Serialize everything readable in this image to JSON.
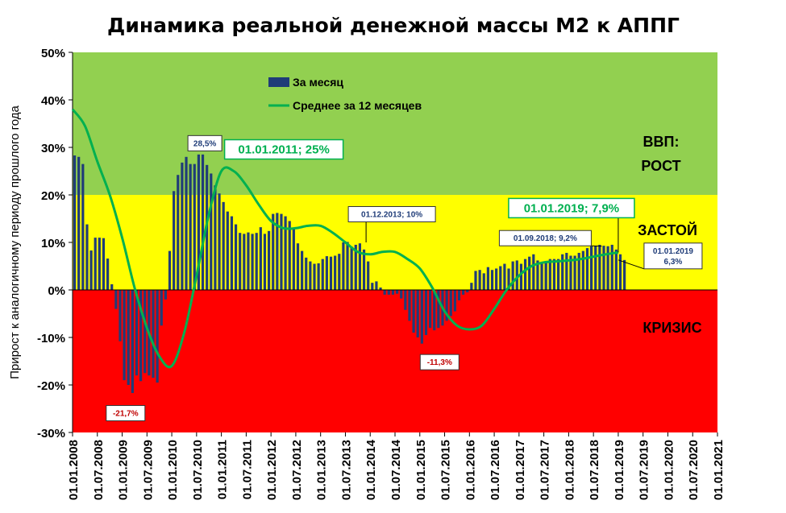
{
  "chart_data": {
    "type": "bar",
    "title": "Динамика реальной денежной массы М2 к АППГ",
    "ylabel": "Прирост к аналогичному периоду прошлого года",
    "ylim": [
      -30,
      50
    ],
    "yticks": [
      50,
      40,
      30,
      20,
      10,
      0,
      -10,
      -20,
      -30
    ],
    "ytick_labels": [
      "50%",
      "40%",
      "30%",
      "20%",
      "10%",
      "0%",
      "-10%",
      "-20%",
      "-30%"
    ],
    "x_start": "01.01.2008",
    "x_end": "01.01.2021",
    "xtick_labels": [
      "01.01.2008",
      "01.07.2008",
      "01.01.2009",
      "01.07.2009",
      "01.01.2010",
      "01.07.2010",
      "01.01.2011",
      "01.07.2011",
      "01.01.2012",
      "01.07.2012",
      "01.01.2013",
      "01.07.2013",
      "01.01.2014",
      "01.07.2014",
      "01.01.2015",
      "01.07.2015",
      "01.01.2016",
      "01.07.2016",
      "01.01.2017",
      "01.07.2017",
      "01.01.2018",
      "01.07.2018",
      "01.01.2019",
      "01.07.2019",
      "01.01.2020",
      "01.07.2020",
      "01.01.2021"
    ],
    "zones": [
      {
        "from": 20,
        "to": 50,
        "color": "#92d050",
        "label": [
          "ВВП:",
          "РОСТ"
        ]
      },
      {
        "from": 0,
        "to": 20,
        "color": "#ffff00",
        "label": [
          "ЗАСТОЙ"
        ]
      },
      {
        "from": -30,
        "to": 0,
        "color": "#ff0000",
        "label": [
          "КРИЗИС"
        ]
      }
    ],
    "legend": {
      "placement": "top-left",
      "entries": [
        "За месяц",
        "Среднее за 12 месяцев"
      ]
    },
    "series": [
      {
        "name": "За месяц",
        "kind": "bar",
        "color": "#1f3c78",
        "start": "01.01.2008",
        "values": [
          28.3,
          28,
          26.5,
          13.8,
          8.3,
          11,
          11,
          10.9,
          6.6,
          1.2,
          -4,
          -10.8,
          -19,
          -20,
          -21.7,
          -18,
          -19.2,
          -17.5,
          -18,
          -18.5,
          -19.5,
          -7.5,
          -2,
          8.2,
          20.8,
          24.2,
          26.8,
          28,
          26.5,
          26.5,
          28.5,
          28.5,
          26.3,
          24.5,
          22,
          20.3,
          18.5,
          16.5,
          15.5,
          13.8,
          12,
          11.8,
          12.1,
          11.8,
          12,
          13.2,
          11.8,
          12.4,
          16,
          16.2,
          16,
          15.5,
          14.5,
          12.8,
          9.8,
          8.2,
          6.8,
          6,
          5.5,
          5.6,
          6.5,
          7.1,
          7,
          7.2,
          7.6,
          10,
          10.1,
          9.1,
          9.5,
          9.8,
          8.5,
          6,
          1.5,
          1.8,
          0.5,
          -1,
          -1,
          -1,
          -0.8,
          -1.8,
          -4.2,
          -6.5,
          -9,
          -10,
          -11.3,
          -9.5,
          -8,
          -8.5,
          -8,
          -7.5,
          -6.5,
          -5.5,
          -4.5,
          -2.2,
          -1,
          -0.5,
          1.5,
          4,
          4.2,
          3.5,
          4.8,
          4.2,
          4.5,
          5,
          5.5,
          4.5,
          6,
          6.2,
          5.5,
          6.5,
          7,
          7.5,
          6.2,
          5.8,
          5.8,
          6.5,
          6.5,
          6.5,
          7.5,
          7.8,
          7.2,
          7.2,
          7.8,
          8.2,
          8.8,
          9.2,
          9.2,
          9.5,
          9.3,
          9.2,
          9.5,
          8.5,
          7.5,
          6.3
        ]
      },
      {
        "name": "Среднее за 12 месяцев",
        "kind": "line",
        "color": "#00b050",
        "x": [
          "01.01.2008",
          "01.04.2008",
          "01.07.2008",
          "01.10.2008",
          "01.01.2009",
          "01.04.2009",
          "01.07.2009",
          "01.10.2009",
          "01.01.2010",
          "01.04.2010",
          "01.07.2010",
          "01.10.2010",
          "01.01.2011",
          "01.04.2011",
          "01.07.2011",
          "01.10.2011",
          "01.01.2012",
          "01.04.2012",
          "01.07.2012",
          "01.10.2012",
          "01.01.2013",
          "01.04.2013",
          "01.07.2013",
          "01.10.2013",
          "01.01.2014",
          "01.04.2014",
          "01.07.2014",
          "01.10.2014",
          "01.01.2015",
          "01.04.2015",
          "01.07.2015",
          "01.10.2015",
          "01.01.2016",
          "01.04.2016",
          "01.07.2016",
          "01.10.2016",
          "01.01.2017",
          "01.04.2017",
          "01.07.2017",
          "01.10.2017",
          "01.01.2018",
          "01.04.2018",
          "01.07.2018",
          "01.10.2018",
          "01.01.2019"
        ],
        "values": [
          38,
          34.5,
          27,
          20,
          11,
          0.5,
          -8,
          -14,
          -16,
          -9,
          3,
          16,
          25,
          25,
          22,
          18,
          14.5,
          13,
          13,
          13.5,
          13.5,
          12,
          10,
          8,
          7.5,
          8,
          8,
          6.5,
          4.5,
          0.5,
          -4.5,
          -7.5,
          -8.3,
          -7.5,
          -4,
          0,
          3,
          5,
          5.8,
          6,
          6.2,
          6.5,
          7,
          7.5,
          7.9
        ]
      }
    ],
    "annotations": [
      {
        "text": "28,5%",
        "at": "01.09.2010",
        "value": 28.5,
        "style": "small"
      },
      {
        "text": "01.01.2011; 25%",
        "at": "01.01.2011",
        "value": 25,
        "style": "big"
      },
      {
        "text": "-21,7%",
        "at": "01.03.2009",
        "value": -21.7,
        "style": "small"
      },
      {
        "text": "01.12.2013;  10%",
        "at": "01.12.2013",
        "value": 10,
        "style": "small"
      },
      {
        "text": "-11,3%",
        "at": "01.05.2015",
        "value": -11.3,
        "style": "small"
      },
      {
        "text": "01.09.2018;  9,2%",
        "at": "01.09.2018",
        "value": 9.2,
        "style": "small"
      },
      {
        "text": "01.01.2019; 7,9%",
        "at": "01.01.2019",
        "value": 7.9,
        "style": "big"
      },
      {
        "text": [
          "01.01.2019",
          "6,3%"
        ],
        "at": "01.01.2019",
        "value": 6.3,
        "style": "small"
      }
    ]
  }
}
